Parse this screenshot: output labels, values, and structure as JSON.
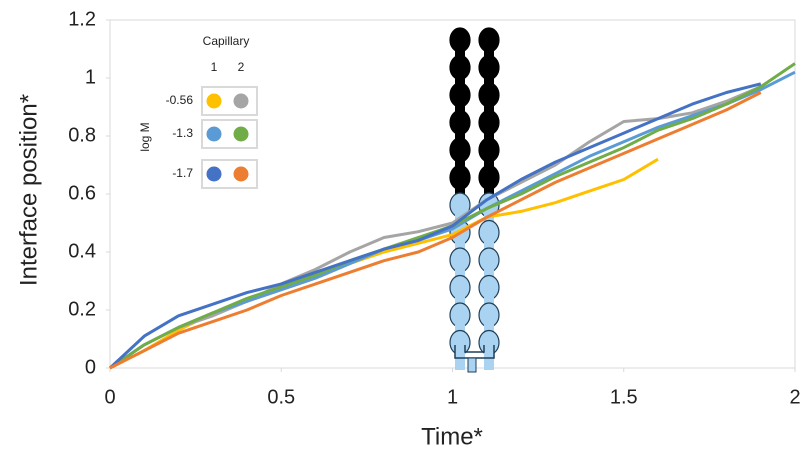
{
  "chart_data": {
    "type": "line",
    "x_label": "Time*",
    "y_label": "Interface position*",
    "x": [
      0,
      0.1,
      0.2,
      0.3,
      0.4,
      0.5,
      0.6,
      0.7,
      0.8,
      0.9,
      1.0,
      1.1,
      1.2,
      1.3,
      1.4,
      1.5,
      1.6,
      1.7,
      1.8,
      1.9,
      2.0
    ],
    "series": [
      {
        "color": "#ffc000",
        "values": [
          0,
          0.06,
          0.13,
          0.19,
          0.23,
          0.27,
          0.31,
          0.36,
          0.4,
          0.43,
          0.46,
          0.52,
          0.54,
          0.57,
          0.61,
          0.65,
          0.72,
          null,
          null,
          null,
          null
        ]
      },
      {
        "color": "#a5a5a5",
        "values": [
          0,
          0.08,
          0.14,
          0.18,
          0.23,
          0.29,
          0.34,
          0.4,
          0.45,
          0.47,
          0.5,
          0.58,
          0.64,
          0.7,
          0.78,
          0.85,
          0.86,
          0.88,
          0.92,
          0.97,
          null
        ]
      },
      {
        "color": "#5b9bd5",
        "values": [
          0,
          0.08,
          0.14,
          0.19,
          0.23,
          0.27,
          0.31,
          0.36,
          0.41,
          0.44,
          0.48,
          0.55,
          0.61,
          0.67,
          0.73,
          0.78,
          0.83,
          0.87,
          0.91,
          0.96,
          1.02
        ]
      },
      {
        "color": "#70ad47",
        "values": [
          0,
          0.08,
          0.14,
          0.19,
          0.24,
          0.28,
          0.32,
          0.37,
          0.41,
          0.45,
          0.49,
          0.55,
          0.6,
          0.66,
          0.71,
          0.76,
          0.82,
          0.86,
          0.91,
          0.97,
          1.05
        ]
      },
      {
        "color": "#4472c4",
        "values": [
          0,
          0.11,
          0.18,
          0.22,
          0.26,
          0.29,
          0.33,
          0.37,
          0.41,
          0.44,
          0.49,
          0.58,
          0.65,
          0.71,
          0.76,
          0.81,
          0.86,
          0.91,
          0.95,
          0.98,
          null
        ]
      },
      {
        "color": "#ed7d31",
        "values": [
          0,
          0.06,
          0.12,
          0.16,
          0.2,
          0.25,
          0.29,
          0.33,
          0.37,
          0.4,
          0.45,
          0.52,
          0.58,
          0.64,
          0.69,
          0.74,
          0.79,
          0.84,
          0.89,
          0.95,
          null
        ]
      }
    ],
    "legend": {
      "title": "Capillary",
      "columns": [
        "1",
        "2"
      ],
      "row_title": "log M",
      "rows": [
        "-0.56",
        "-1.3",
        "-1.7"
      ]
    },
    "xlim": [
      0,
      2
    ],
    "xticks": [
      0,
      0.5,
      1,
      1.5,
      2
    ],
    "ylim": [
      0,
      1.2
    ],
    "yticks": [
      0,
      0.2,
      0.4,
      0.6,
      0.8,
      1,
      1.2
    ],
    "grid": false
  }
}
